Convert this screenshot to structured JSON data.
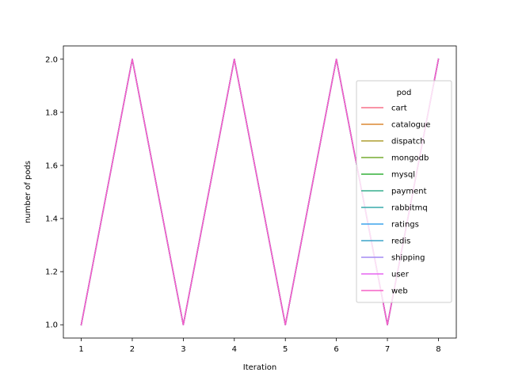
{
  "chart_data": {
    "type": "line",
    "title": "",
    "xlabel": "Iteration",
    "ylabel": "number of pods",
    "x": [
      1,
      2,
      3,
      4,
      5,
      6,
      7,
      8
    ],
    "xlim": [
      0.65,
      8.35
    ],
    "ylim": [
      0.95,
      2.05
    ],
    "xticks": [
      "1",
      "2",
      "3",
      "4",
      "5",
      "6",
      "7",
      "8"
    ],
    "yticks": [
      "1.0",
      "1.2",
      "1.4",
      "1.6",
      "1.8",
      "2.0"
    ],
    "grid": false,
    "legend": {
      "title": "pod",
      "placement": "right"
    },
    "series": [
      {
        "name": "cart",
        "color": "#f77189",
        "values": [
          1,
          2,
          1,
          2,
          1,
          2,
          1,
          2
        ]
      },
      {
        "name": "catalogue",
        "color": "#dc8932",
        "values": [
          1,
          2,
          1,
          2,
          1,
          2,
          1,
          2
        ]
      },
      {
        "name": "dispatch",
        "color": "#ae9d31",
        "values": [
          1,
          2,
          1,
          2,
          1,
          2,
          1,
          2
        ]
      },
      {
        "name": "mongodb",
        "color": "#77ab31",
        "values": [
          1,
          2,
          1,
          2,
          1,
          2,
          1,
          2
        ]
      },
      {
        "name": "mysql",
        "color": "#33b039",
        "values": [
          1,
          2,
          1,
          2,
          1,
          2,
          1,
          2
        ]
      },
      {
        "name": "payment",
        "color": "#36ad8e",
        "values": [
          1,
          2,
          1,
          2,
          1,
          2,
          1,
          2
        ]
      },
      {
        "name": "rabbitmq",
        "color": "#38aaac",
        "values": [
          1,
          2,
          1,
          2,
          1,
          2,
          1,
          2
        ]
      },
      {
        "name": "ratings",
        "color": "#3ba3ec",
        "values": [
          1,
          2,
          1,
          2,
          1,
          2,
          1,
          2
        ]
      },
      {
        "name": "redis",
        "color": "#3ba3c8",
        "values": [
          1,
          2,
          1,
          2,
          1,
          2,
          1,
          2
        ]
      },
      {
        "name": "shipping",
        "color": "#a48cf4",
        "values": [
          1,
          2,
          1,
          2,
          1,
          2,
          1,
          2
        ]
      },
      {
        "name": "user",
        "color": "#e565f0",
        "values": [
          1,
          2,
          1,
          2,
          1,
          2,
          1,
          2
        ]
      },
      {
        "name": "web",
        "color": "#f560c6",
        "values": [
          1,
          2,
          1,
          2,
          1,
          2,
          1,
          2
        ]
      }
    ]
  }
}
